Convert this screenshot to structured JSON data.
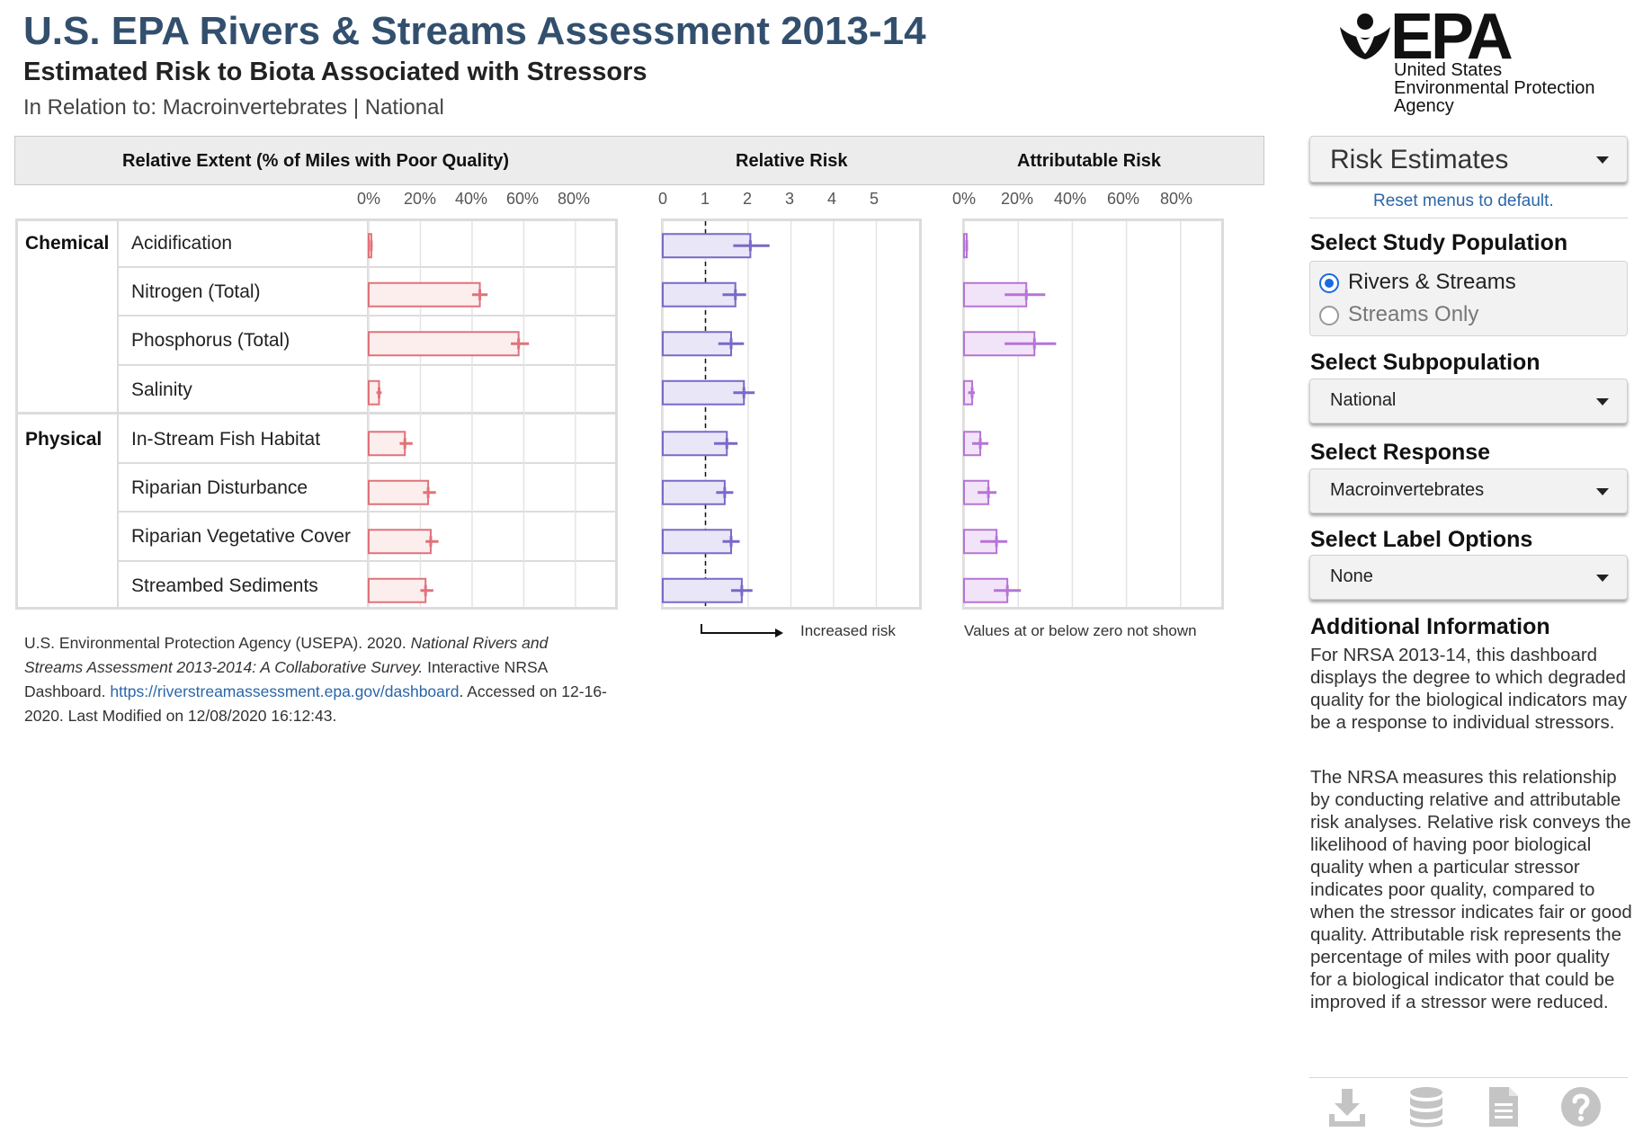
{
  "header": {
    "title": "U.S. EPA Rivers & Streams Assessment 2013-14",
    "subtitle": "Estimated Risk to Biota Associated with Stressors",
    "relation": "In Relation to: Macroinvertebrates | National"
  },
  "logo": {
    "wordmark": "EPA",
    "agency_lines": [
      "United States",
      "Environmental Protection",
      "Agency"
    ],
    "icon": "epa-flower-logo-icon"
  },
  "panels": {
    "extent_title": "Relative Extent (% of Miles with Poor Quality)",
    "risk_title": "Relative Risk",
    "attr_title": "Attributable Risk",
    "extent_ticks": [
      "0%",
      "20%",
      "40%",
      "60%",
      "80%"
    ],
    "risk_ticks": [
      "0",
      "1",
      "2",
      "3",
      "4",
      "5"
    ],
    "attr_ticks": [
      "0%",
      "20%",
      "40%",
      "60%",
      "80%"
    ],
    "increased_risk_label": "Increased risk",
    "attr_note": "Values at or below zero not shown"
  },
  "groups": [
    {
      "name": "Chemical",
      "rows": 4
    },
    {
      "name": "Physical",
      "rows": 4
    }
  ],
  "colors": {
    "extent": "#e0727a",
    "extent_fill": "#fdeeee",
    "risk": "#7b68c8",
    "risk_fill": "#e9e6f7",
    "attr": "#b674d6",
    "attr_fill": "#f2e4f8",
    "title": "#334f6e",
    "link": "#2a66a8",
    "radio_on": "#1a6ae0"
  },
  "chart_data": [
    {
      "type": "bar",
      "title": "Relative Extent (% of Miles with Poor Quality)",
      "unit": "%",
      "xlim": [
        0,
        95
      ],
      "categories": [
        "Acidification",
        "Nitrogen (Total)",
        "Phosphorus (Total)",
        "Salinity",
        "In-Stream Fish Habitat",
        "Riparian Disturbance",
        "Riparian Vegetative Cover",
        "Streambed Sediments"
      ],
      "values": [
        1,
        43,
        58,
        4,
        14,
        23,
        24,
        22
      ],
      "ci_low": [
        0.5,
        40,
        55,
        3,
        12,
        21,
        22,
        20
      ],
      "ci_high": [
        1.5,
        46,
        62,
        5,
        17,
        26,
        27,
        25
      ]
    },
    {
      "type": "bar",
      "title": "Relative Risk",
      "xlim": [
        0,
        6
      ],
      "reference_line": 1,
      "categories": [
        "Acidification",
        "Nitrogen (Total)",
        "Phosphorus (Total)",
        "Salinity",
        "In-Stream Fish Habitat",
        "Riparian Disturbance",
        "Riparian Vegetative Cover",
        "Streambed Sediments"
      ],
      "values": [
        2.05,
        1.7,
        1.6,
        1.9,
        1.5,
        1.45,
        1.6,
        1.85
      ],
      "ci_low": [
        1.65,
        1.4,
        1.3,
        1.65,
        1.2,
        1.25,
        1.4,
        1.6
      ],
      "ci_high": [
        2.5,
        1.95,
        1.9,
        2.15,
        1.75,
        1.65,
        1.8,
        2.1
      ]
    },
    {
      "type": "bar",
      "title": "Attributable Risk",
      "unit": "%",
      "xlim": [
        0,
        95
      ],
      "categories": [
        "Acidification",
        "Nitrogen (Total)",
        "Phosphorus (Total)",
        "Salinity",
        "In-Stream Fish Habitat",
        "Riparian Disturbance",
        "Riparian Vegetative Cover",
        "Streambed Sediments"
      ],
      "values": [
        1,
        23,
        26,
        3,
        6,
        9,
        12,
        16
      ],
      "ci_low": [
        0.5,
        15,
        15,
        1.5,
        3,
        5,
        6,
        11
      ],
      "ci_high": [
        1.5,
        30,
        34,
        4,
        9,
        12,
        16,
        21
      ]
    }
  ],
  "citation": {
    "prefix": "U.S. Environmental Protection Agency (USEPA). 2020. ",
    "italic": "National Rivers and Streams Assessment 2013-2014: A Collaborative Survey.",
    "middle": " Interactive NRSA Dashboard. ",
    "link": "https://riverstreamassessment.epa.gov/dashboard",
    "suffix": ". Accessed on 12-16-2020. Last Modified on 12/08/2020 16:12:43."
  },
  "sidebar": {
    "view_dropdown": "Risk Estimates",
    "reset_link": "Reset menus to default.",
    "study_population": {
      "heading": "Select Study Population",
      "options": [
        "Rivers & Streams",
        "Streams Only"
      ],
      "selected": "Rivers & Streams"
    },
    "subpopulation": {
      "heading": "Select Subpopulation",
      "value": "National"
    },
    "response": {
      "heading": "Select Response",
      "value": "Macroinvertebrates"
    },
    "label_options": {
      "heading": "Select Label Options",
      "value": "None"
    },
    "additional": {
      "heading": "Additional Information",
      "p1": "For NRSA 2013-14, this dashboard displays the degree to which degraded quality for the biological indicators may be a response to individual stressors.",
      "p2": "The NRSA measures this relationship by conducting relative and attributable risk analyses. Relative risk conveys the likelihood of having poor biological quality when a particular stressor indicates poor quality, compared to when the stressor indicates fair or good quality. Attributable risk represents the percentage of miles with poor quality for a biological indicator that could be improved if a stressor were reduced."
    },
    "toolbar_icons": [
      "download-icon",
      "database-icon",
      "document-icon",
      "help-icon"
    ]
  }
}
